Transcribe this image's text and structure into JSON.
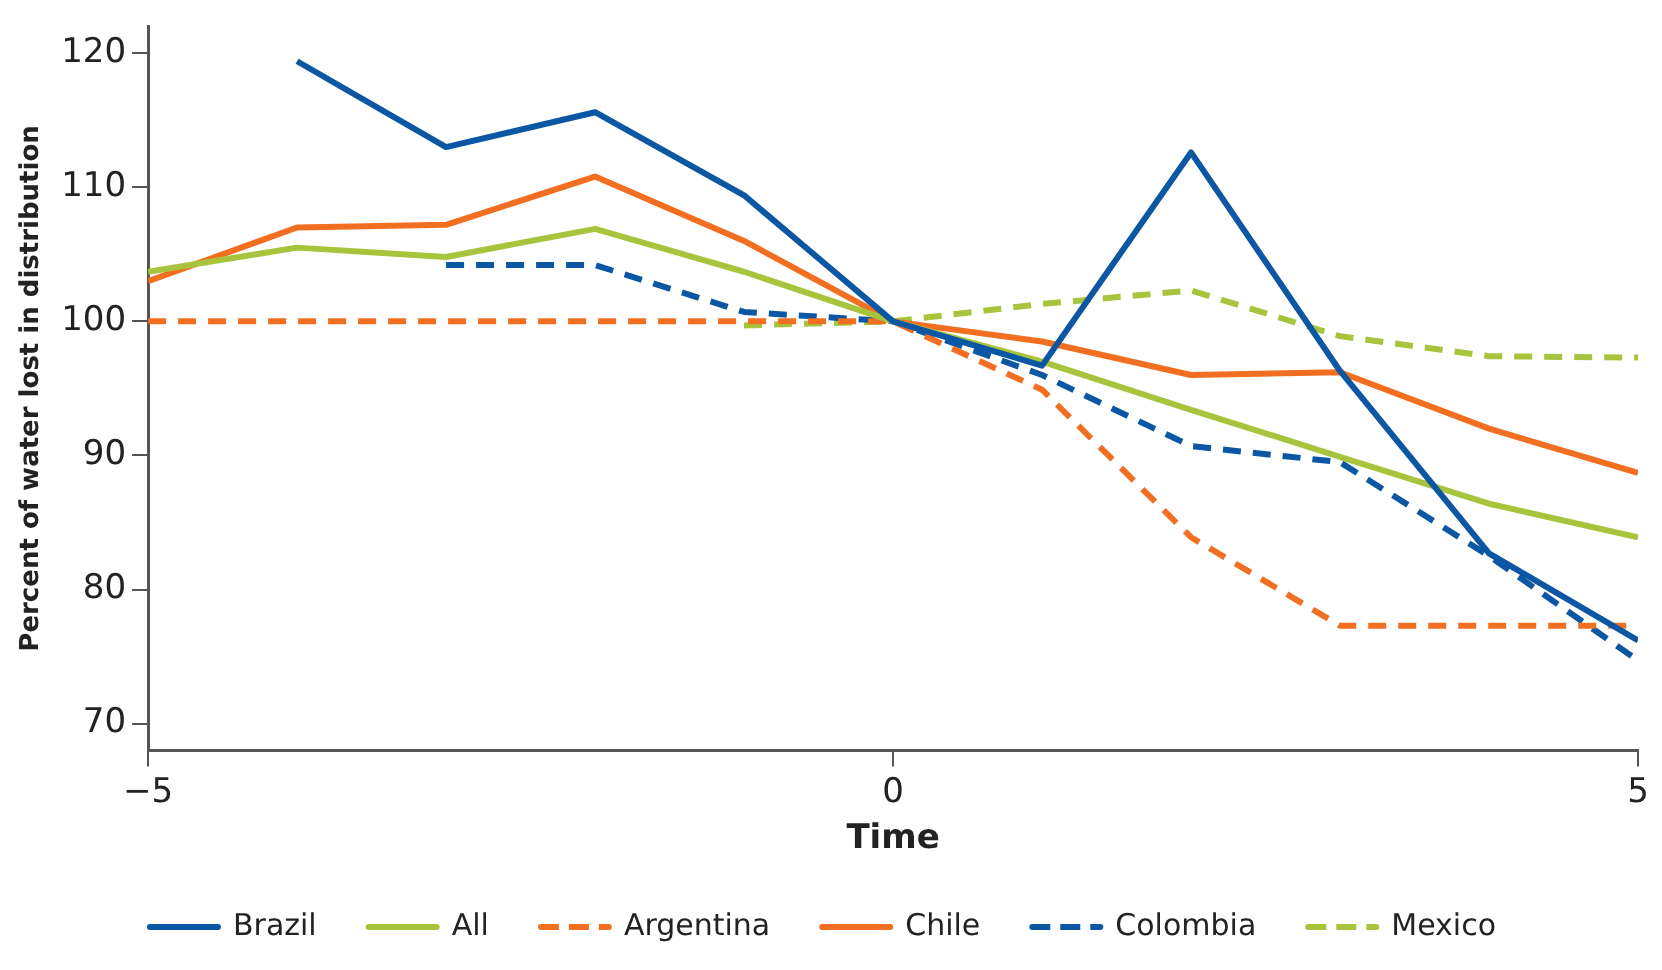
{
  "chart_data": {
    "type": "line",
    "xlabel": "Time",
    "ylabel": "Percent of water lost in distribution",
    "x": [
      -5,
      -4,
      -3,
      -2,
      -1,
      0,
      1,
      2,
      3,
      4,
      5
    ],
    "xlim": [
      -5,
      5
    ],
    "xticks": [
      {
        "value": -5,
        "label": "−5"
      },
      0,
      5
    ],
    "ylim": [
      68,
      122
    ],
    "yticks": [
      70,
      80,
      90,
      100,
      110,
      120
    ],
    "grid": false,
    "legend": "bottom",
    "marker": "none",
    "series": [
      {
        "name": "Brazil",
        "color": "#0b57a4",
        "line_style": "solid",
        "values": [
          null,
          119.4,
          113.0,
          115.6,
          109.4,
          100,
          96.7,
          112.6,
          96.3,
          82.7,
          76.2
        ]
      },
      {
        "name": "All",
        "color": "#a8c43c",
        "line_style": "solid",
        "values": [
          103.7,
          105.5,
          104.8,
          106.9,
          103.7,
          100,
          97,
          93.4,
          89.9,
          86.4,
          83.9
        ]
      },
      {
        "name": "Argentina",
        "color": "#f26f21",
        "line_style": "dashed",
        "values": [
          100,
          100,
          100,
          100,
          100,
          100,
          94.9,
          83.9,
          77.3,
          77.3,
          77.3
        ]
      },
      {
        "name": "Chile",
        "color": "#f26f21",
        "line_style": "solid",
        "values": [
          103,
          107,
          107.2,
          110.8,
          106,
          100,
          98.5,
          96,
          96.2,
          92,
          88.7
        ]
      },
      {
        "name": "Colombia",
        "color": "#0b57a4",
        "line_style": "dashed",
        "values": [
          null,
          null,
          104.2,
          104.2,
          100.7,
          100,
          96,
          90.7,
          89.5,
          82.5,
          74.7
        ]
      },
      {
        "name": "Mexico",
        "color": "#a8c43c",
        "line_style": "dashed",
        "values": [
          null,
          null,
          null,
          null,
          99.7,
          100,
          101.3,
          102.3,
          98.9,
          97.4,
          97.3
        ]
      }
    ]
  }
}
